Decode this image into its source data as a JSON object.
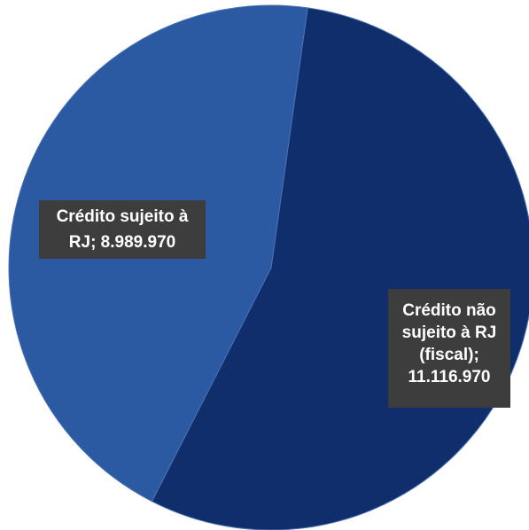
{
  "chart_data": {
    "type": "pie",
    "title": "",
    "slices": [
      {
        "label_lines": [
          "Crédito não",
          "sujeito à RJ",
          "(fiscal);",
          "11.116.970"
        ],
        "category": "Crédito não sujeito à RJ (fiscal)",
        "value": 11116970,
        "value_text": "11.116.970",
        "color": "#102e6b"
      },
      {
        "label_lines": [
          "Crédito sujeito à",
          "RJ;  8.989.970"
        ],
        "category": "Crédito sujeito à RJ",
        "value": 8989970,
        "value_text": "8.989.970",
        "color": "#2b5aa3"
      }
    ],
    "label_box_color": "#3d3d3d",
    "legend": "none"
  }
}
